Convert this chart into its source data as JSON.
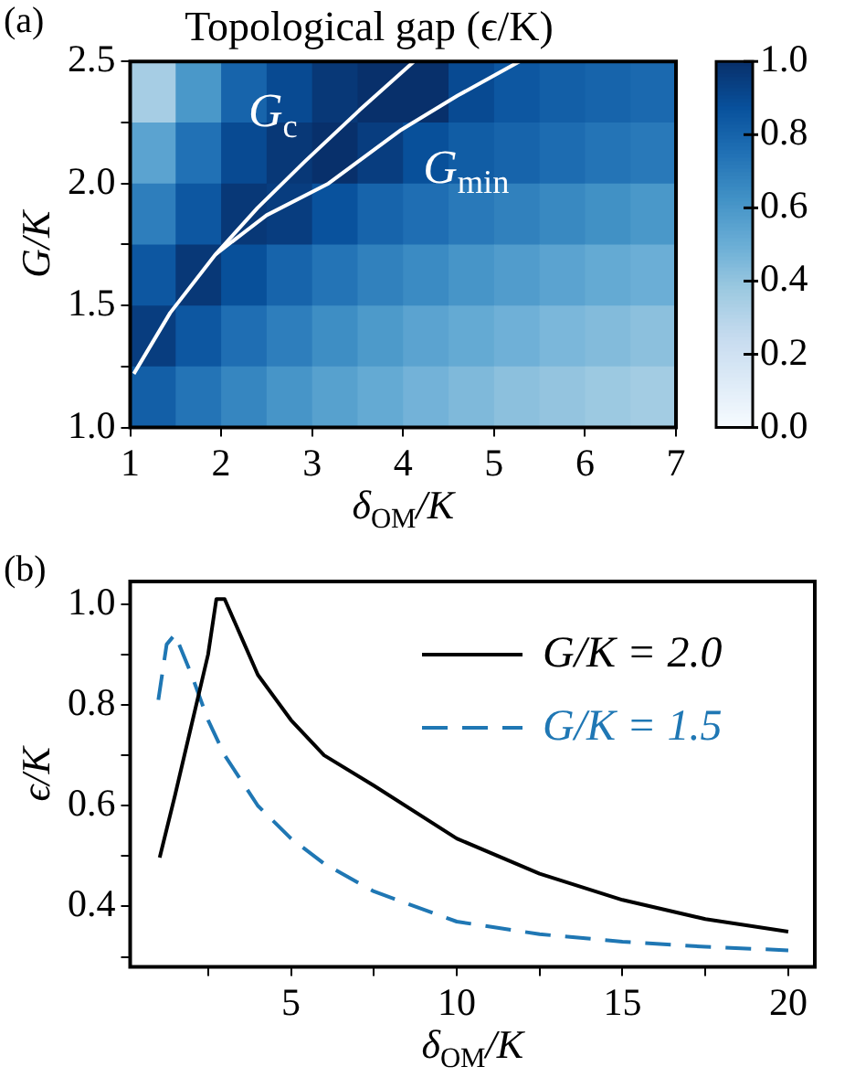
{
  "chart_data": [
    {
      "type": "heatmap",
      "title": "Topological gap (ϵ/K)",
      "xlabel": "δ$_{OM}$/K",
      "ylabel": "G/K",
      "xlim": [
        1,
        7
      ],
      "xticks": [
        1,
        2,
        3,
        4,
        5,
        6,
        7
      ],
      "ylim": [
        1.0,
        2.5
      ],
      "yticks": [
        {
          "value": 1.0,
          "label": "1.0"
        },
        {
          "value": 1.25,
          "label": null
        },
        {
          "value": 1.5,
          "label": "1.5"
        },
        {
          "value": 1.75,
          "label": null
        },
        {
          "value": 2.0,
          "label": "2.0"
        },
        {
          "value": 2.25,
          "label": null
        },
        {
          "value": 2.5,
          "label": "2.5"
        }
      ],
      "clim": [
        0,
        1
      ],
      "cticks": [
        {
          "value": 0,
          "label": "0.0"
        },
        {
          "value": 0.2,
          "label": "0.2"
        },
        {
          "value": 0.4,
          "label": "0.4"
        },
        {
          "value": 0.6,
          "label": "0.6"
        },
        {
          "value": 0.8,
          "label": "0.8"
        },
        {
          "value": 1,
          "label": "1.0"
        }
      ],
      "cells": [
        [
          0.35,
          0.6,
          0.8,
          0.9,
          0.97,
          1.0,
          1.0,
          0.9,
          0.85,
          0.82,
          0.8,
          0.78
        ],
        [
          0.55,
          0.75,
          0.9,
          0.97,
          1.0,
          0.95,
          0.88,
          0.83,
          0.8,
          0.77,
          0.74,
          0.72
        ],
        [
          0.7,
          0.85,
          0.97,
          0.95,
          0.87,
          0.8,
          0.76,
          0.72,
          0.69,
          0.66,
          0.63,
          0.6
        ],
        [
          0.85,
          0.97,
          0.88,
          0.8,
          0.74,
          0.69,
          0.65,
          0.61,
          0.58,
          0.55,
          0.52,
          0.5
        ],
        [
          0.95,
          0.85,
          0.76,
          0.7,
          0.64,
          0.59,
          0.55,
          0.52,
          0.49,
          0.46,
          0.44,
          0.42
        ],
        [
          0.82,
          0.74,
          0.67,
          0.61,
          0.56,
          0.52,
          0.48,
          0.45,
          0.42,
          0.4,
          0.38,
          0.36
        ]
      ],
      "series": [
        {
          "type": "line",
          "name": "G$_{c}$",
          "color": "#ffffff",
          "x": [
            1.04,
            1.44,
            1.94,
            2.4,
            2.92,
            3.52,
            4.12
          ],
          "values": [
            1.22,
            1.47,
            1.71,
            1.9,
            2.09,
            2.3,
            2.5
          ]
        },
        {
          "type": "line",
          "name": "G$_{min}$",
          "color": "#ffffff",
          "x": [
            1.94,
            2.5,
            3.18,
            3.98,
            4.6,
            5.28
          ],
          "values": [
            1.71,
            1.87,
            2.0,
            2.22,
            2.36,
            2.5
          ]
        }
      ],
      "annotations": [
        "(a)"
      ]
    },
    {
      "type": "line",
      "xlabel": "δ$_{OM}$/K",
      "ylabel": "ϵ/K",
      "xlim": [
        0.15,
        20.8
      ],
      "xticks": [
        {
          "value": 2.5,
          "label": null
        },
        5,
        {
          "value": 7.5,
          "label": null
        },
        10,
        {
          "value": 12.5,
          "label": null
        },
        15,
        {
          "value": 17.5,
          "label": null
        },
        20
      ],
      "ylim": [
        0.28,
        1.045
      ],
      "yticks": [
        {
          "value": 0.3,
          "label": null
        },
        {
          "value": 0.4,
          "label": "0.4"
        },
        {
          "value": 0.5,
          "label": null
        },
        {
          "value": 0.6,
          "label": "0.6"
        },
        {
          "value": 0.7,
          "label": null
        },
        {
          "value": 0.8,
          "label": "0.8"
        },
        {
          "value": 0.9,
          "label": null
        },
        {
          "value": 1.0,
          "label": "1.0"
        }
      ],
      "legend": "top right",
      "series": [
        {
          "name": "G/K = 2.0",
          "color": "#000000",
          "line_style": "solid",
          "x": [
            1.04,
            1.5,
            2.0,
            2.5,
            2.75,
            3.0,
            3.5,
            4,
            5,
            6,
            7.5,
            10,
            12.5,
            15,
            17.5,
            20
          ],
          "values": [
            0.497,
            0.62,
            0.76,
            0.9,
            1.01,
            1.01,
            0.935,
            0.86,
            0.77,
            0.7,
            0.64,
            0.535,
            0.465,
            0.413,
            0.375,
            0.35
          ]
        },
        {
          "name": "G/K = 1.5",
          "color": "#1f77b4",
          "line_style": "dashed",
          "x": [
            1.0,
            1.25,
            1.5,
            2,
            2.5,
            3,
            4,
            5,
            6,
            7.5,
            10,
            12.5,
            15,
            17.5,
            20
          ],
          "values": [
            0.81,
            0.92,
            0.94,
            0.86,
            0.77,
            0.7,
            0.6,
            0.535,
            0.485,
            0.43,
            0.37,
            0.345,
            0.33,
            0.32,
            0.313
          ]
        }
      ],
      "annotations": [
        "(b)"
      ]
    }
  ]
}
